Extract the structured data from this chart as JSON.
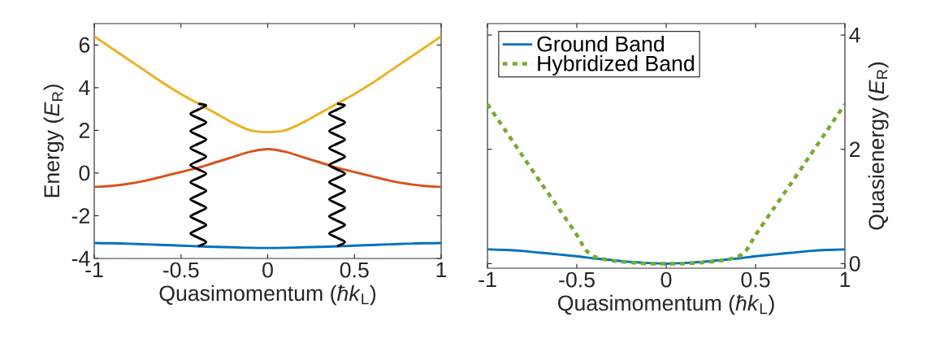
{
  "chart_data": [
    {
      "type": "line",
      "xlabel": "Quasimomentum (*ħk*$_{L}$)",
      "ylabel": "Energy (*E*$_{R}$)",
      "xlim": [
        -1,
        1
      ],
      "ylim": [
        -4,
        7
      ],
      "xticks": [
        -1,
        -0.5,
        0,
        0.5,
        1
      ],
      "yticks": [
        -4,
        -2,
        0,
        2,
        4,
        6
      ],
      "legend": false,
      "x": [
        -1,
        -0.9,
        -0.8,
        -0.7,
        -0.6,
        -0.5,
        -0.4,
        -0.3,
        -0.2,
        -0.1,
        0,
        0.1,
        0.2,
        0.3,
        0.4,
        0.5,
        0.6,
        0.7,
        0.8,
        0.9,
        1
      ],
      "series": [
        {
          "color": "#0072bd",
          "line_style": "solid",
          "values": [
            -3.28,
            -3.29,
            -3.31,
            -3.34,
            -3.37,
            -3.4,
            -3.43,
            -3.46,
            -3.48,
            -3.5,
            -3.51,
            -3.5,
            -3.48,
            -3.46,
            -3.43,
            -3.4,
            -3.37,
            -3.34,
            -3.31,
            -3.29,
            -3.28
          ]
        },
        {
          "color": "#d95319",
          "line_style": "solid",
          "values": [
            -0.65,
            -0.6,
            -0.5,
            -0.35,
            -0.15,
            0.05,
            0.25,
            0.5,
            0.75,
            1.0,
            1.12,
            1.0,
            0.75,
            0.5,
            0.25,
            0.05,
            -0.15,
            -0.35,
            -0.5,
            -0.6,
            -0.65
          ]
        },
        {
          "color": "#edb120",
          "line_style": "solid",
          "values": [
            6.4,
            5.85,
            5.3,
            4.75,
            4.2,
            3.7,
            3.25,
            2.8,
            2.35,
            2.0,
            1.92,
            2.0,
            2.35,
            2.8,
            3.25,
            3.7,
            4.2,
            4.75,
            5.3,
            5.85,
            6.4
          ]
        },
        {
          "color": "#000000",
          "line_style": "solid",
          "x": [
            -0.4,
            -0.355,
            -0.4,
            -0.445,
            -0.4,
            -0.355,
            -0.4,
            -0.445,
            -0.4,
            -0.355,
            -0.4,
            -0.445,
            -0.4,
            -0.355,
            -0.4,
            -0.445,
            -0.4,
            -0.355,
            -0.4,
            -0.445,
            -0.4,
            -0.355,
            -0.4,
            -0.445,
            -0.4,
            -0.355,
            -0.4,
            -0.445,
            -0.4,
            -0.355,
            -0.4,
            -0.445,
            -0.4,
            -0.355,
            -0.4
          ],
          "values": [
            -3.43,
            -3.23,
            -3.03,
            -2.83,
            -2.63,
            -2.43,
            -2.23,
            -2.03,
            -1.83,
            -1.63,
            -1.43,
            -1.23,
            -1.03,
            -0.83,
            -0.63,
            -0.43,
            -0.23,
            -0.03,
            0.17,
            0.37,
            0.57,
            0.77,
            0.97,
            1.17,
            1.37,
            1.57,
            1.77,
            1.97,
            2.17,
            2.37,
            2.57,
            2.77,
            2.97,
            3.17,
            3.25
          ]
        },
        {
          "color": "#000000",
          "line_style": "solid",
          "x": [
            0.4,
            0.445,
            0.4,
            0.355,
            0.4,
            0.445,
            0.4,
            0.355,
            0.4,
            0.445,
            0.4,
            0.355,
            0.4,
            0.445,
            0.4,
            0.355,
            0.4,
            0.445,
            0.4,
            0.355,
            0.4,
            0.445,
            0.4,
            0.355,
            0.4,
            0.445,
            0.4,
            0.355,
            0.4,
            0.445,
            0.4,
            0.355,
            0.4,
            0.445,
            0.4
          ],
          "values": [
            -3.43,
            -3.23,
            -3.03,
            -2.83,
            -2.63,
            -2.43,
            -2.23,
            -2.03,
            -1.83,
            -1.63,
            -1.43,
            -1.23,
            -1.03,
            -0.83,
            -0.63,
            -0.43,
            -0.23,
            -0.03,
            0.17,
            0.37,
            0.57,
            0.77,
            0.97,
            1.17,
            1.37,
            1.57,
            1.77,
            1.97,
            2.17,
            2.37,
            2.57,
            2.77,
            2.97,
            3.17,
            3.25
          ]
        }
      ]
    },
    {
      "type": "line",
      "xlabel": "Quasimomentum (*ħk*$_{L}$)",
      "ylabel": "Quasienergy (*E*$_{R}$)",
      "xlim": [
        -1,
        1
      ],
      "ylim": [
        -0.08,
        4.2
      ],
      "xticks": [
        -1,
        -0.5,
        0,
        0.5,
        1
      ],
      "yticks": [
        0,
        2,
        4
      ],
      "legend": "top left",
      "x": [
        -1,
        -0.9,
        -0.8,
        -0.7,
        -0.6,
        -0.5,
        -0.4,
        -0.3,
        -0.2,
        -0.1,
        0,
        0.1,
        0.2,
        0.3,
        0.4,
        0.5,
        0.6,
        0.7,
        0.8,
        0.9,
        1
      ],
      "series": [
        {
          "name": "Ground Band",
          "color": "#0072bd",
          "line_style": "solid",
          "values": [
            0.25,
            0.24,
            0.22,
            0.19,
            0.16,
            0.13,
            0.09,
            0.06,
            0.03,
            0.01,
            0,
            0.01,
            0.03,
            0.06,
            0.09,
            0.13,
            0.16,
            0.19,
            0.22,
            0.24,
            0.25
          ]
        },
        {
          "name": "Hybridized Band",
          "color": "#77ac30",
          "line_style": "dotted",
          "x": [
            -1,
            -0.9,
            -0.8,
            -0.7,
            -0.6,
            -0.5,
            -0.45,
            -0.4,
            -0.3,
            -0.2,
            -0.1,
            0,
            0.1,
            0.2,
            0.3,
            0.4,
            0.45,
            0.5,
            0.6,
            0.7,
            0.8,
            0.9,
            1
          ],
          "values": [
            2.79,
            2.33,
            1.87,
            1.41,
            0.96,
            0.5,
            0.24,
            0.12,
            0.05,
            0.02,
            0,
            0,
            0,
            0.02,
            0.05,
            0.12,
            0.24,
            0.5,
            0.96,
            1.41,
            1.87,
            2.33,
            2.79
          ]
        }
      ]
    }
  ]
}
